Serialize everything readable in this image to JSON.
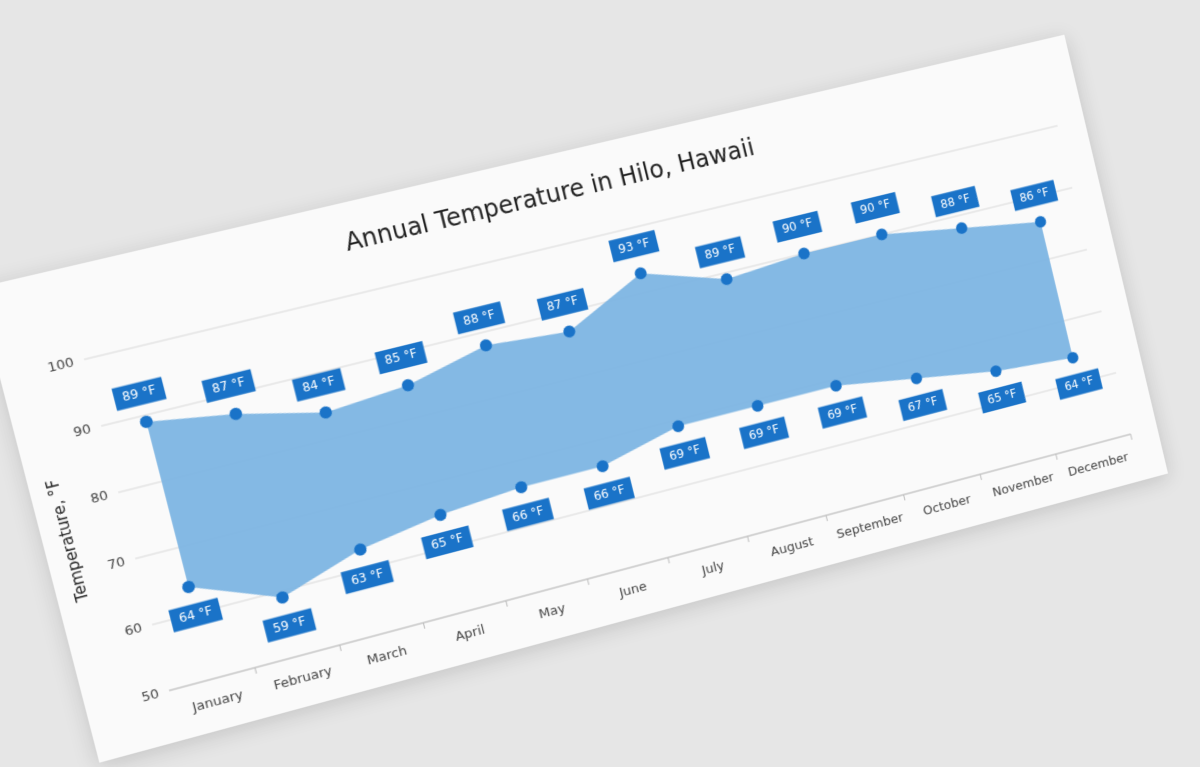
{
  "chart_data": {
    "type": "range-area",
    "title": "Annual Temperature in Hilo, Hawaii",
    "y_axis_label": "Temperature, °F",
    "categories": [
      "January",
      "February",
      "March",
      "April",
      "May",
      "June",
      "July",
      "August",
      "September",
      "October",
      "November",
      "December"
    ],
    "series": [
      {
        "color": "#1a73c8",
        "values": [
          89,
          87,
          84,
          85,
          88,
          87,
          93,
          89,
          90,
          90,
          88,
          86
        ],
        "value_labels": [
          "89 °F",
          "87 °F",
          "84 °F",
          "85 °F",
          "88 °F",
          "87 °F",
          "93 °F",
          "89 °F",
          "90 °F",
          "90 °F",
          "88 °F",
          "86 °F"
        ]
      },
      {
        "color": "#1a73c8",
        "values": [
          64,
          59,
          63,
          65,
          66,
          66,
          69,
          69,
          69,
          67,
          65,
          64
        ],
        "value_labels": [
          "64 °F",
          "59 °F",
          "63 °F",
          "65 °F",
          "66 °F",
          "66 °F",
          "69 °F",
          "69 °F",
          "69 °F",
          "67 °F",
          "65 °F",
          "64 °F"
        ]
      }
    ],
    "area_color": "#7db5e3",
    "ylim": [
      50,
      100
    ],
    "yticks": [
      50,
      60,
      70,
      80,
      90,
      100
    ],
    "grid": true
  }
}
